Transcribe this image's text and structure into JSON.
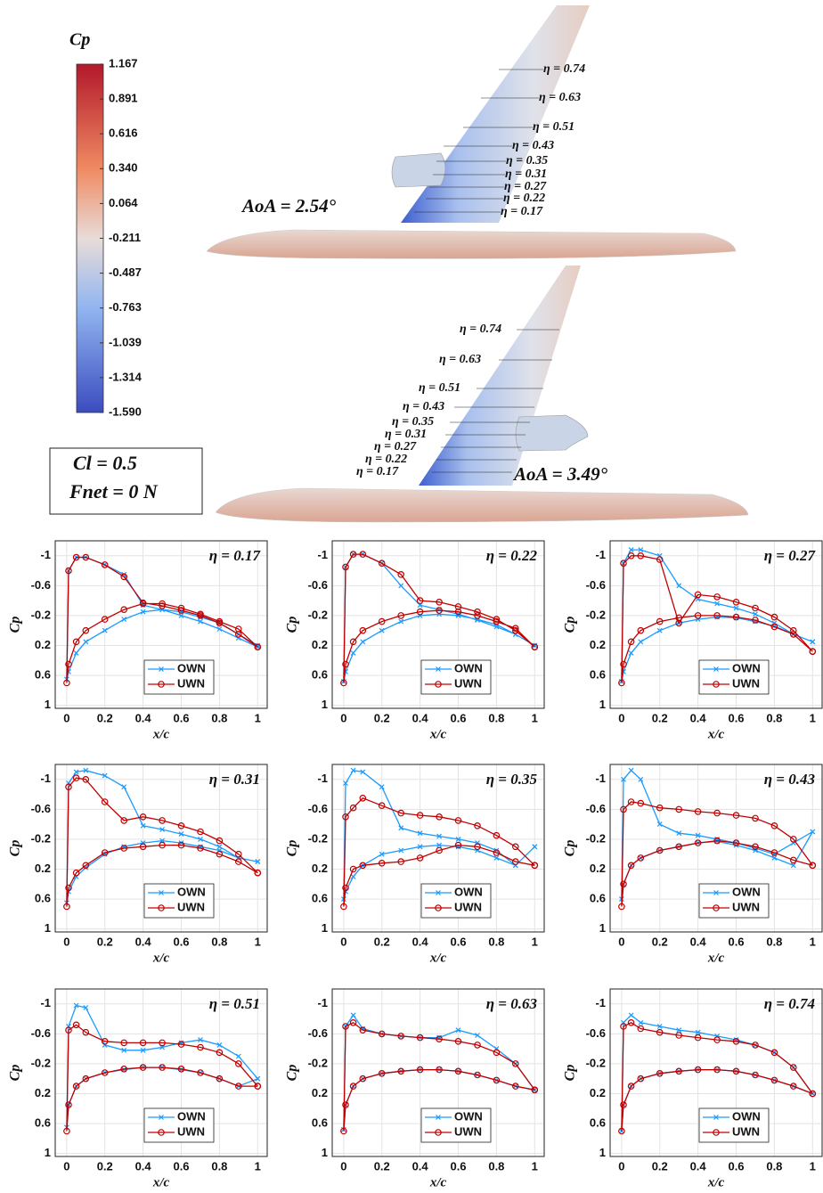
{
  "colorbar": {
    "label": "Cp",
    "ylim": [
      -1.59,
      1.167
    ],
    "yticks": [
      1.167,
      0.891,
      0.616,
      {
        "value": 0.34,
        "label": "0.340"
      },
      0.064,
      -0.211,
      -0.487,
      -0.763,
      -1.039,
      -1.314,
      {
        "value": -1.59,
        "label": "-1.590"
      }
    ]
  },
  "views": [
    {
      "aoa": "AoA = 2.54°",
      "stations": [
        "η = 0.74",
        "η = 0.63",
        "η = 0.51",
        "η = 0.43",
        "η = 0.35",
        "η = 0.31",
        "η = 0.27",
        "η = 0.22",
        "η = 0.17"
      ]
    },
    {
      "aoa": "AoA = 3.49°",
      "stations": [
        "η = 0.74",
        "η = 0.63",
        "η = 0.51",
        "η = 0.43",
        "η = 0.35",
        "η = 0.31",
        "η = 0.27",
        "η = 0.22",
        "η = 0.17"
      ]
    }
  ],
  "conditions": [
    "Cl = 0.5",
    "Fnet = 0 N"
  ],
  "chart_data": [
    {
      "type": "line",
      "title": "η = 0.17",
      "xlabel": "x/c",
      "ylabel": "Cp",
      "x": [
        1,
        0.9,
        0.8,
        0.7,
        0.6,
        0.5,
        0.4,
        0.3,
        0.2,
        0.1,
        0.05,
        0.01,
        0,
        0.01,
        0.05,
        0.1,
        0.2,
        0.3,
        0.4,
        0.5,
        0.6,
        0.7,
        0.8,
        0.9,
        1
      ],
      "series": [
        {
          "name": "OWN",
          "color": "#1a9bff",
          "marker": "x",
          "values": [
            0.22,
            0.1,
            -0.02,
            -0.12,
            -0.2,
            -0.28,
            -0.34,
            -0.75,
            -0.88,
            -0.98,
            -0.98,
            -0.8,
            0.65,
            0.55,
            0.3,
            0.15,
            0.0,
            -0.15,
            -0.25,
            -0.28,
            -0.25,
            -0.18,
            -0.1,
            0.05,
            0.2
          ]
        },
        {
          "name": "UWN",
          "color": "#c00000",
          "marker": "o",
          "values": [
            0.22,
            0.05,
            -0.1,
            -0.2,
            -0.27,
            -0.33,
            -0.37,
            -0.72,
            -0.88,
            -0.98,
            -0.98,
            -0.8,
            0.7,
            0.45,
            0.15,
            0.0,
            -0.15,
            -0.28,
            -0.36,
            -0.36,
            -0.3,
            -0.22,
            -0.12,
            -0.02,
            0.22
          ]
        }
      ],
      "xlim": [
        -0.06,
        1.05
      ],
      "ylim": [
        1.04,
        -1.2
      ],
      "xticks": [
        0,
        0.2,
        0.4,
        0.6,
        0.8,
        1
      ],
      "yticks": [
        -1,
        -0.6,
        -0.2,
        0.2,
        0.6,
        1
      ],
      "grid": true,
      "legend": "lower center"
    },
    {
      "type": "line",
      "title": "η = 0.22",
      "xlabel": "x/c",
      "ylabel": "Cp",
      "x": [
        1,
        0.9,
        0.8,
        0.7,
        0.6,
        0.5,
        0.4,
        0.3,
        0.2,
        0.1,
        0.05,
        0.01,
        0,
        0.01,
        0.05,
        0.1,
        0.2,
        0.3,
        0.4,
        0.5,
        0.6,
        0.7,
        0.8,
        0.9,
        1
      ],
      "series": [
        {
          "name": "OWN",
          "color": "#1a9bff",
          "marker": "x",
          "values": [
            0.2,
            0.05,
            -0.05,
            -0.14,
            -0.22,
            -0.28,
            -0.34,
            -0.6,
            -0.9,
            -1.02,
            -1.02,
            -0.85,
            0.68,
            0.55,
            0.3,
            0.15,
            0.0,
            -0.12,
            -0.2,
            -0.22,
            -0.2,
            -0.15,
            -0.08,
            0.05,
            0.2
          ]
        },
        {
          "name": "UWN",
          "color": "#c00000",
          "marker": "o",
          "values": [
            0.22,
            0.0,
            -0.15,
            -0.25,
            -0.32,
            -0.38,
            -0.4,
            -0.75,
            -0.9,
            -1.02,
            -1.02,
            -0.85,
            0.7,
            0.45,
            0.15,
            0.0,
            -0.12,
            -0.2,
            -0.25,
            -0.27,
            -0.25,
            -0.2,
            -0.12,
            -0.03,
            0.22
          ]
        }
      ],
      "xlim": [
        -0.06,
        1.05
      ],
      "ylim": [
        1.04,
        -1.2
      ],
      "xticks": [
        0,
        0.2,
        0.4,
        0.6,
        0.8,
        1
      ],
      "yticks": [
        -1,
        -0.6,
        -0.2,
        0.2,
        0.6,
        1
      ],
      "grid": true,
      "legend": "lower center"
    },
    {
      "type": "line",
      "title": "η = 0.27",
      "xlabel": "x/c",
      "ylabel": "Cp",
      "x": [
        1,
        0.9,
        0.8,
        0.7,
        0.6,
        0.5,
        0.4,
        0.3,
        0.2,
        0.1,
        0.05,
        0.01,
        0,
        0.01,
        0.05,
        0.1,
        0.2,
        0.3,
        0.4,
        0.5,
        0.6,
        0.7,
        0.8,
        0.9,
        1
      ],
      "series": [
        {
          "name": "OWN",
          "color": "#1a9bff",
          "marker": "x",
          "values": [
            0.15,
            0.05,
            -0.1,
            -0.22,
            -0.3,
            -0.36,
            -0.42,
            -0.6,
            -1.0,
            -1.08,
            -1.08,
            -0.9,
            0.68,
            0.55,
            0.3,
            0.15,
            0.0,
            -0.1,
            -0.15,
            -0.18,
            -0.17,
            -0.12,
            -0.06,
            0.05,
            0.15
          ]
        },
        {
          "name": "UWN",
          "color": "#c00000",
          "marker": "o",
          "values": [
            0.28,
            0.0,
            -0.18,
            -0.3,
            -0.38,
            -0.45,
            -0.48,
            -0.1,
            -0.95,
            -1.0,
            -1.0,
            -0.9,
            0.7,
            0.45,
            0.15,
            0.0,
            -0.12,
            -0.17,
            -0.2,
            -0.2,
            -0.18,
            -0.14,
            -0.05,
            0.05,
            0.28
          ]
        }
      ],
      "xlim": [
        -0.06,
        1.05
      ],
      "ylim": [
        1.04,
        -1.2
      ],
      "xticks": [
        0,
        0.2,
        0.4,
        0.6,
        0.8,
        1
      ],
      "yticks": [
        -1,
        -0.6,
        -0.2,
        0.2,
        0.6,
        1
      ],
      "grid": true,
      "legend": "lower center"
    },
    {
      "type": "line",
      "title": "η = 0.31",
      "xlabel": "x/c",
      "ylabel": "Cp",
      "x": [
        1,
        0.9,
        0.8,
        0.7,
        0.6,
        0.5,
        0.4,
        0.3,
        0.2,
        0.1,
        0.05,
        0.01,
        0,
        0.01,
        0.05,
        0.1,
        0.2,
        0.3,
        0.4,
        0.5,
        0.6,
        0.7,
        0.8,
        0.9,
        1
      ],
      "series": [
        {
          "name": "OWN",
          "color": "#1a9bff",
          "marker": "x",
          "values": [
            0.1,
            0.05,
            -0.1,
            -0.2,
            -0.27,
            -0.33,
            -0.38,
            -0.9,
            -1.05,
            -1.12,
            -1.1,
            -0.95,
            0.65,
            0.5,
            0.3,
            0.18,
            0.0,
            -0.1,
            -0.15,
            -0.18,
            -0.15,
            -0.1,
            -0.05,
            0.05,
            0.1
          ]
        },
        {
          "name": "UWN",
          "color": "#c00000",
          "marker": "o",
          "values": [
            0.25,
            0.0,
            -0.18,
            -0.3,
            -0.38,
            -0.45,
            -0.5,
            -0.45,
            -0.7,
            -1.0,
            -1.02,
            -0.9,
            0.7,
            0.45,
            0.25,
            0.15,
            -0.02,
            -0.08,
            -0.1,
            -0.12,
            -0.12,
            -0.08,
            0.0,
            0.1,
            0.25
          ]
        }
      ],
      "xlim": [
        -0.06,
        1.05
      ],
      "ylim": [
        1.04,
        -1.2
      ],
      "xticks": [
        0,
        0.2,
        0.4,
        0.6,
        0.8,
        1
      ],
      "yticks": [
        -1,
        -0.6,
        -0.2,
        0.2,
        0.6,
        1
      ],
      "grid": true,
      "legend": "lower center"
    },
    {
      "type": "line",
      "title": "η = 0.35",
      "xlabel": "x/c",
      "ylabel": "Cp",
      "x": [
        1,
        0.9,
        0.8,
        0.7,
        0.6,
        0.5,
        0.4,
        0.3,
        0.2,
        0.1,
        0.05,
        0.01,
        0,
        0.01,
        0.05,
        0.1,
        0.2,
        0.3,
        0.4,
        0.5,
        0.6,
        0.7,
        0.8,
        0.9,
        1
      ],
      "series": [
        {
          "name": "OWN",
          "color": "#1a9bff",
          "marker": "x",
          "values": [
            -0.1,
            0.15,
            -0.05,
            -0.15,
            -0.2,
            -0.24,
            -0.28,
            -0.35,
            -0.9,
            -1.1,
            -1.12,
            -0.95,
            0.6,
            0.5,
            0.3,
            0.15,
            0.0,
            -0.05,
            -0.1,
            -0.12,
            -0.1,
            -0.05,
            0.05,
            0.15,
            -0.1
          ]
        },
        {
          "name": "UWN",
          "color": "#c00000",
          "marker": "o",
          "values": [
            0.15,
            -0.1,
            -0.25,
            -0.38,
            -0.45,
            -0.5,
            -0.52,
            -0.55,
            -0.65,
            -0.75,
            -0.62,
            -0.5,
            0.7,
            0.45,
            0.2,
            0.15,
            0.12,
            0.1,
            0.05,
            -0.05,
            -0.12,
            -0.1,
            -0.02,
            0.1,
            0.15
          ]
        }
      ],
      "xlim": [
        -0.06,
        1.05
      ],
      "ylim": [
        1.04,
        -1.2
      ],
      "xticks": [
        0,
        0.2,
        0.4,
        0.6,
        0.8,
        1
      ],
      "yticks": [
        -1,
        -0.6,
        -0.2,
        0.2,
        0.6,
        1
      ],
      "grid": true,
      "legend": "lower center"
    },
    {
      "type": "line",
      "title": "η = 0.43",
      "xlabel": "x/c",
      "ylabel": "Cp",
      "x": [
        1,
        0.9,
        0.8,
        0.7,
        0.6,
        0.5,
        0.4,
        0.3,
        0.2,
        0.1,
        0.05,
        0.01,
        0,
        0.01,
        0.05,
        0.1,
        0.2,
        0.3,
        0.4,
        0.5,
        0.6,
        0.7,
        0.8,
        0.9,
        1
      ],
      "series": [
        {
          "name": "OWN",
          "color": "#1a9bff",
          "marker": "x",
          "values": [
            -0.3,
            -0.15,
            0.0,
            -0.08,
            -0.15,
            -0.2,
            -0.25,
            -0.28,
            -0.4,
            -1.0,
            -1.12,
            -1.0,
            0.6,
            0.4,
            0.15,
            0.05,
            -0.05,
            -0.1,
            -0.15,
            -0.17,
            -0.12,
            -0.05,
            0.05,
            0.15,
            -0.3
          ]
        },
        {
          "name": "UWN",
          "color": "#c00000",
          "marker": "o",
          "values": [
            0.15,
            -0.2,
            -0.38,
            -0.48,
            -0.52,
            -0.55,
            -0.57,
            -0.6,
            -0.62,
            -0.68,
            -0.7,
            -0.6,
            0.7,
            0.4,
            0.15,
            0.05,
            -0.05,
            -0.1,
            -0.15,
            -0.18,
            -0.15,
            -0.1,
            -0.02,
            0.08,
            0.15
          ]
        }
      ],
      "xlim": [
        -0.06,
        1.05
      ],
      "ylim": [
        1.04,
        -1.2
      ],
      "xticks": [
        0,
        0.2,
        0.4,
        0.6,
        0.8,
        1
      ],
      "yticks": [
        -1,
        -0.6,
        -0.2,
        0.2,
        0.6,
        1
      ],
      "grid": true,
      "legend": "lower center"
    },
    {
      "type": "line",
      "title": "η = 0.51",
      "xlabel": "x/c",
      "ylabel": "Cp",
      "x": [
        1,
        0.9,
        0.8,
        0.7,
        0.6,
        0.5,
        0.4,
        0.3,
        0.2,
        0.1,
        0.05,
        0.01,
        0,
        0.01,
        0.05,
        0.1,
        0.2,
        0.3,
        0.4,
        0.5,
        0.6,
        0.7,
        0.8,
        0.9,
        1
      ],
      "series": [
        {
          "name": "OWN",
          "color": "#1a9bff",
          "marker": "x",
          "values": [
            0.0,
            -0.3,
            -0.45,
            -0.52,
            -0.48,
            -0.42,
            -0.38,
            -0.38,
            -0.45,
            -0.95,
            -0.98,
            -0.7,
            0.65,
            0.35,
            0.1,
            0.0,
            -0.08,
            -0.12,
            -0.15,
            -0.15,
            -0.12,
            -0.08,
            0.0,
            0.1,
            0.0
          ]
        },
        {
          "name": "UWN",
          "color": "#c00000",
          "marker": "o",
          "values": [
            0.1,
            -0.2,
            -0.35,
            -0.42,
            -0.46,
            -0.48,
            -0.48,
            -0.48,
            -0.5,
            -0.62,
            -0.72,
            -0.65,
            0.7,
            0.35,
            0.1,
            0.0,
            -0.08,
            -0.13,
            -0.15,
            -0.15,
            -0.13,
            -0.08,
            0.0,
            0.1,
            0.1
          ]
        }
      ],
      "xlim": [
        -0.06,
        1.05
      ],
      "ylim": [
        1.04,
        -1.2
      ],
      "xticks": [
        0,
        0.2,
        0.4,
        0.6,
        0.8,
        1
      ],
      "yticks": [
        -1,
        -0.6,
        -0.2,
        0.2,
        0.6,
        1
      ],
      "grid": true,
      "legend": "lower center"
    },
    {
      "type": "line",
      "title": "η = 0.63",
      "xlabel": "x/c",
      "ylabel": "Cp",
      "x": [
        1,
        0.9,
        0.8,
        0.7,
        0.6,
        0.5,
        0.4,
        0.3,
        0.2,
        0.1,
        0.05,
        0.01,
        0,
        0.01,
        0.05,
        0.1,
        0.2,
        0.3,
        0.4,
        0.5,
        0.6,
        0.7,
        0.8,
        0.9,
        1
      ],
      "series": [
        {
          "name": "OWN",
          "color": "#1a9bff",
          "marker": "x",
          "values": [
            0.15,
            -0.2,
            -0.4,
            -0.58,
            -0.65,
            -0.55,
            -0.55,
            -0.57,
            -0.6,
            -0.67,
            -0.85,
            -0.7,
            0.68,
            0.35,
            0.1,
            0.0,
            -0.07,
            -0.1,
            -0.12,
            -0.12,
            -0.1,
            -0.05,
            0.02,
            0.1,
            0.15
          ]
        },
        {
          "name": "UWN",
          "color": "#c00000",
          "marker": "o",
          "values": [
            0.15,
            -0.2,
            -0.35,
            -0.45,
            -0.5,
            -0.53,
            -0.55,
            -0.57,
            -0.6,
            -0.65,
            -0.75,
            -0.7,
            0.7,
            0.35,
            0.1,
            0.0,
            -0.07,
            -0.1,
            -0.12,
            -0.12,
            -0.1,
            -0.05,
            0.02,
            0.1,
            0.15
          ]
        }
      ],
      "xlim": [
        -0.06,
        1.05
      ],
      "ylim": [
        1.04,
        -1.2
      ],
      "xticks": [
        0,
        0.2,
        0.4,
        0.6,
        0.8,
        1
      ],
      "yticks": [
        -1,
        -0.6,
        -0.2,
        0.2,
        0.6,
        1
      ],
      "grid": true,
      "legend": "lower center"
    },
    {
      "type": "line",
      "title": "η = 0.74",
      "xlabel": "x/c",
      "ylabel": "Cp",
      "x": [
        1,
        0.9,
        0.8,
        0.7,
        0.6,
        0.5,
        0.4,
        0.3,
        0.2,
        0.1,
        0.05,
        0.01,
        0,
        0.01,
        0.05,
        0.1,
        0.2,
        0.3,
        0.4,
        0.5,
        0.6,
        0.7,
        0.8,
        0.9,
        1
      ],
      "series": [
        {
          "name": "OWN",
          "color": "#1a9bff",
          "marker": "x",
          "values": [
            0.2,
            -0.15,
            -0.35,
            -0.45,
            -0.52,
            -0.57,
            -0.62,
            -0.65,
            -0.7,
            -0.75,
            -0.85,
            -0.75,
            0.7,
            0.35,
            0.1,
            0.0,
            -0.07,
            -0.1,
            -0.12,
            -0.12,
            -0.1,
            -0.05,
            0.02,
            0.1,
            0.2
          ]
        },
        {
          "name": "UWN",
          "color": "#c00000",
          "marker": "o",
          "values": [
            0.2,
            -0.15,
            -0.35,
            -0.45,
            -0.5,
            -0.52,
            -0.55,
            -0.58,
            -0.62,
            -0.67,
            -0.75,
            -0.7,
            0.7,
            0.35,
            0.1,
            0.0,
            -0.07,
            -0.1,
            -0.12,
            -0.12,
            -0.1,
            -0.05,
            0.02,
            0.1,
            0.2
          ]
        }
      ],
      "xlim": [
        -0.06,
        1.05
      ],
      "ylim": [
        1.04,
        -1.2
      ],
      "xticks": [
        0,
        0.2,
        0.4,
        0.6,
        0.8,
        1
      ],
      "yticks": [
        -1,
        -0.6,
        -0.2,
        0.2,
        0.6,
        1
      ],
      "grid": true,
      "legend": "lower center"
    }
  ]
}
